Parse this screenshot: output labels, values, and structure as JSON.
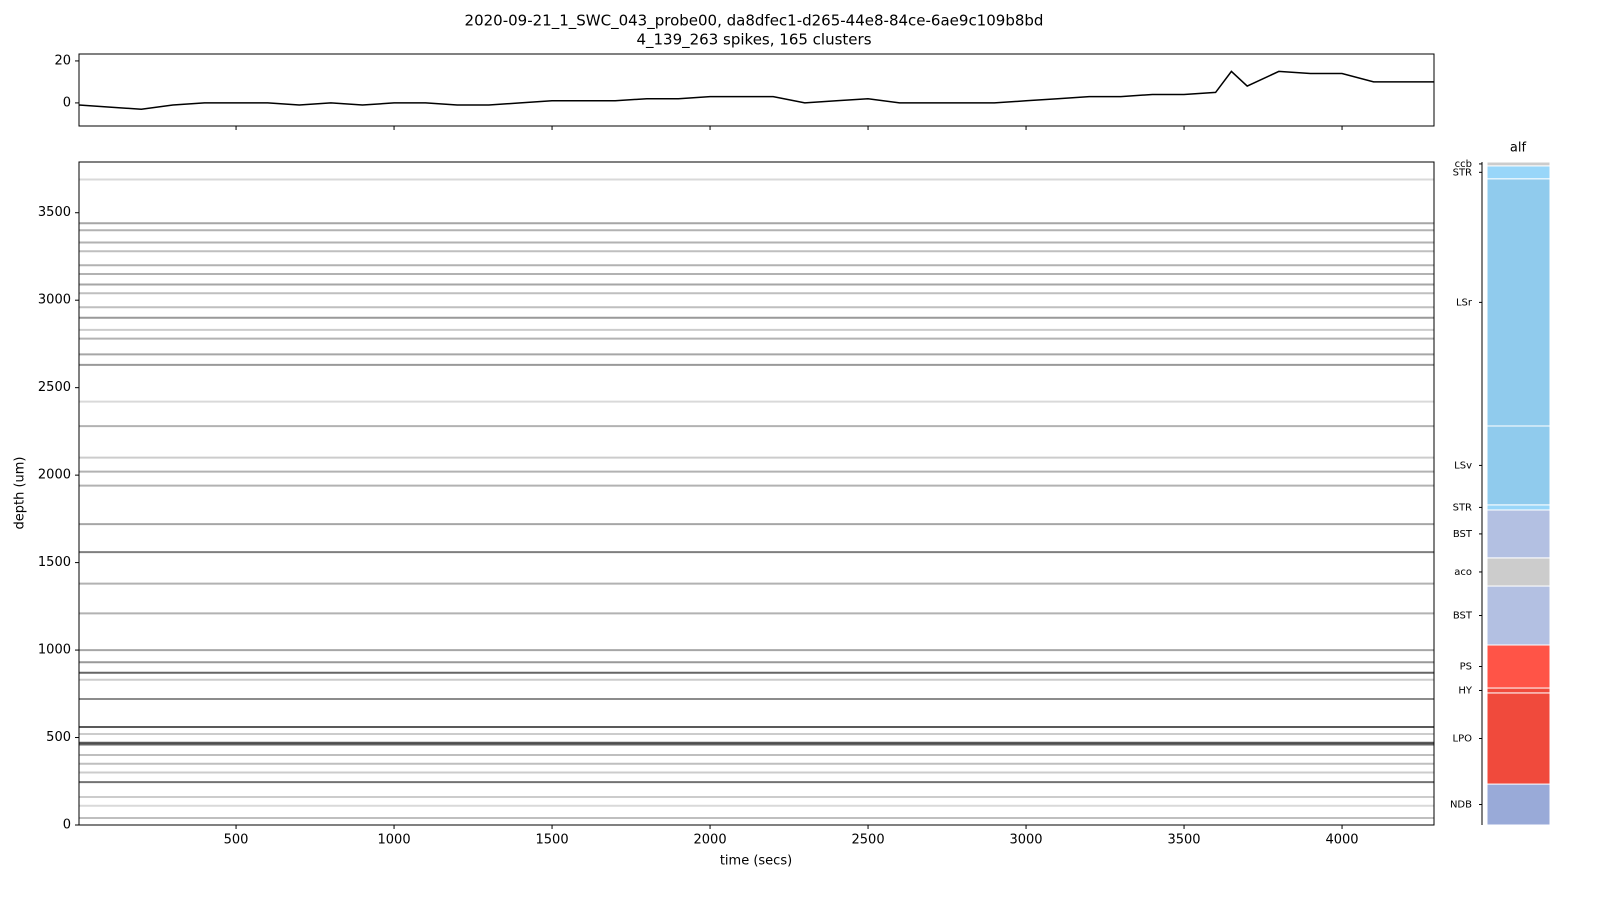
{
  "chart_data": [
    {
      "type": "line",
      "title": "2020-09-21_1_SWC_043_probe00, da8dfec1-d265-44e8-84ce-6ae9c109b8bd",
      "subtitle": "4_139_263 spikes, 165 clusters",
      "x": [
        3,
        100,
        200,
        300,
        400,
        500,
        600,
        700,
        800,
        900,
        1000,
        1100,
        1200,
        1300,
        1400,
        1500,
        1600,
        1700,
        1800,
        1900,
        2000,
        2100,
        2200,
        2300,
        2400,
        2500,
        2600,
        2700,
        2800,
        2900,
        3000,
        3100,
        3200,
        3300,
        3400,
        3500,
        3600,
        3650,
        3700,
        3800,
        3900,
        4000,
        4100,
        4200,
        4291
      ],
      "series": [
        {
          "color": "#000000",
          "values": [
            -1,
            -2,
            -3,
            -1,
            0,
            0,
            0,
            -1,
            0,
            -1,
            0,
            0,
            -1,
            -1,
            0,
            1,
            1,
            1,
            2,
            2,
            3,
            3,
            3,
            0,
            1,
            2,
            0,
            0,
            0,
            0,
            1,
            2,
            3,
            3,
            4,
            4,
            5,
            15,
            8,
            15,
            14,
            14,
            10,
            10,
            10
          ]
        }
      ],
      "xlim": [
        3,
        4291
      ],
      "ylim": [
        -11,
        23.3
      ],
      "yticks": [
        0,
        20
      ],
      "xticks": [
        500,
        1000,
        1500,
        2000,
        2500,
        3000,
        3500,
        4000
      ]
    },
    {
      "type": "raster",
      "xlabel": "time (secs)",
      "ylabel": "depth (um)",
      "depths": [
        40,
        110,
        160,
        245,
        300,
        350,
        400,
        460,
        470,
        520,
        560,
        720,
        830,
        870,
        930,
        1000,
        1210,
        1380,
        1560,
        1720,
        1940,
        2020,
        2100,
        2280,
        2420,
        2630,
        2690,
        2780,
        2830,
        2900,
        2960,
        3040,
        3090,
        3150,
        3200,
        3280,
        3330,
        3400,
        3440,
        3690
      ],
      "intensity": [
        0.25,
        0.15,
        0.2,
        0.55,
        0.2,
        0.25,
        0.25,
        0.6,
        0.65,
        0.2,
        0.65,
        0.45,
        0.2,
        0.6,
        0.4,
        0.35,
        0.3,
        0.3,
        0.5,
        0.35,
        0.3,
        0.3,
        0.2,
        0.3,
        0.15,
        0.4,
        0.35,
        0.3,
        0.2,
        0.4,
        0.25,
        0.25,
        0.35,
        0.3,
        0.3,
        0.25,
        0.3,
        0.3,
        0.35,
        0.15
      ],
      "xlim": [
        3,
        4291
      ],
      "ylim": [
        0,
        3790
      ],
      "yticks": [
        0,
        500,
        1000,
        1500,
        2000,
        2500,
        3000,
        3500
      ],
      "xticks": [
        500,
        1000,
        1500,
        2000,
        2500,
        3000,
        3500,
        4000
      ]
    },
    {
      "type": "regions",
      "title": "alf",
      "ylim": [
        0,
        3790
      ],
      "regions": [
        {
          "name": "NDB",
          "lower": 0,
          "upper": 234,
          "color": "#99aad8"
        },
        {
          "name": "LPO",
          "lower": 234,
          "upper": 755,
          "color": "#f04a3c"
        },
        {
          "name": "HY",
          "lower": 755,
          "upper": 783,
          "color": "#f04a3c"
        },
        {
          "name": "PS",
          "lower": 783,
          "upper": 1029,
          "color": "#ff5447"
        },
        {
          "name": "BST",
          "lower": 1029,
          "upper": 1366,
          "color": "#b3c0e2"
        },
        {
          "name": "aco",
          "lower": 1366,
          "upper": 1527,
          "color": "#cccccc"
        },
        {
          "name": "BST",
          "lower": 1527,
          "upper": 1801,
          "color": "#b3c0e2"
        },
        {
          "name": "STR",
          "lower": 1801,
          "upper": 1830,
          "color": "#98d6f9"
        },
        {
          "name": "LSv",
          "lower": 1830,
          "upper": 2281,
          "color": "#90cbed"
        },
        {
          "name": "LSr",
          "lower": 2281,
          "upper": 3694,
          "color": "#90cbed"
        },
        {
          "name": "STR",
          "lower": 3694,
          "upper": 3768,
          "color": "#98d6f9"
        },
        {
          "name": "ccb",
          "lower": 3768,
          "upper": 3790,
          "color": "#cccccc"
        }
      ]
    }
  ]
}
